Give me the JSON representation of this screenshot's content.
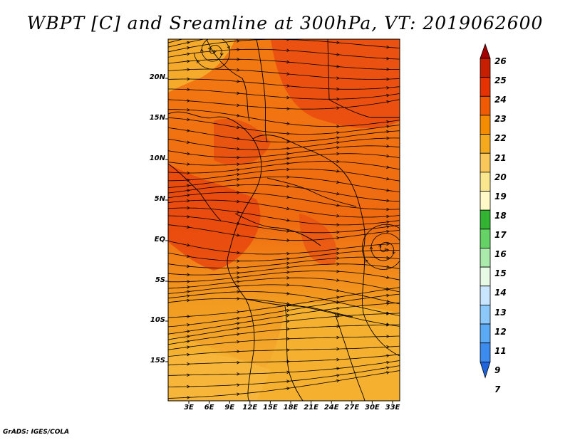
{
  "title": "WBPT [C] and Sreamline at 300hPa, VT: 2019062600",
  "footer": "GrADS: IGES/COLA",
  "map": {
    "lat_labels": [
      "20N",
      "15N",
      "10N",
      "5N",
      "EQ",
      "5S",
      "10S",
      "15S"
    ],
    "lon_labels": [
      "3E",
      "6E",
      "9E",
      "12E",
      "15E",
      "18E",
      "21E",
      "24E",
      "27E",
      "30E",
      "33E"
    ]
  },
  "colorbar": {
    "labels": [
      "26",
      "25",
      "24",
      "23",
      "22",
      "21",
      "20",
      "19",
      "18",
      "17",
      "16",
      "15",
      "14",
      "13",
      "12",
      "11",
      "9",
      "7"
    ],
    "colors": [
      "#a50000",
      "#c81e00",
      "#e63200",
      "#f05a00",
      "#f58c00",
      "#f5aa1e",
      "#fac85a",
      "#fae68c",
      "#fffac8",
      "#32b432",
      "#64d264",
      "#aaeaaa",
      "#e6fae6",
      "#c8e6ff",
      "#8cc8fa",
      "#5aaaf5",
      "#3c8cf0",
      "#1e64dc"
    ]
  }
}
